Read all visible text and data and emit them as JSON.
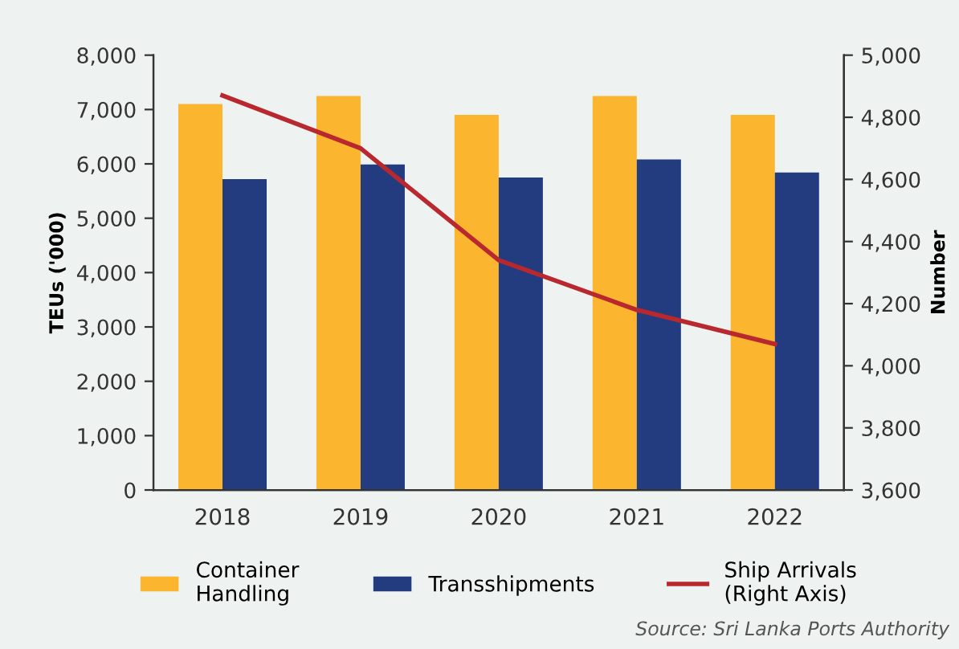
{
  "chart_data": {
    "type": "bar",
    "categories": [
      "2018",
      "2019",
      "2020",
      "2021",
      "2022"
    ],
    "series": [
      {
        "name": "Container\nHandling",
        "color": "#fbb52e",
        "values": [
          7100,
          7250,
          6900,
          7250,
          6900
        ]
      },
      {
        "name": "Transshipments",
        "color": "#233c80",
        "values": [
          5720,
          5990,
          5750,
          6080,
          5840
        ]
      },
      {
        "name": "Ship Arrivals\n(Right Axis)",
        "type": "line",
        "axis": "y2",
        "color": "#b8282e",
        "line_style": "solid",
        "values": [
          4870,
          4700,
          4340,
          4180,
          4070
        ]
      }
    ],
    "ylabel": "TEUs ('000)",
    "y2label": "Number",
    "ylim": [
      0,
      8000
    ],
    "yticks": [
      {
        "value": 0,
        "label": "0"
      },
      {
        "value": 1000,
        "label": "1,000"
      },
      {
        "value": 2000,
        "label": "2,000"
      },
      {
        "value": 3000,
        "label": "3,000"
      },
      {
        "value": 4000,
        "label": "4,000"
      },
      {
        "value": 5000,
        "label": "5,000"
      },
      {
        "value": 6000,
        "label": "6,000"
      },
      {
        "value": 7000,
        "label": "7,000"
      },
      {
        "value": 8000,
        "label": "8,000"
      }
    ],
    "y2lim": [
      3600,
      5000
    ],
    "y2ticks": [
      {
        "value": 3600,
        "label": "3,600"
      },
      {
        "value": 3800,
        "label": "3,800"
      },
      {
        "value": 4000,
        "label": "4,000"
      },
      {
        "value": 4200,
        "label": "4,200"
      },
      {
        "value": 4400,
        "label": "4,400"
      },
      {
        "value": 4600,
        "label": "4,600"
      },
      {
        "value": 4800,
        "label": "4,800"
      },
      {
        "value": 5000,
        "label": "5,000"
      }
    ],
    "grid": false,
    "legend": "bottom",
    "annotations": [
      "Source: Sri Lanka Ports Authority"
    ]
  }
}
